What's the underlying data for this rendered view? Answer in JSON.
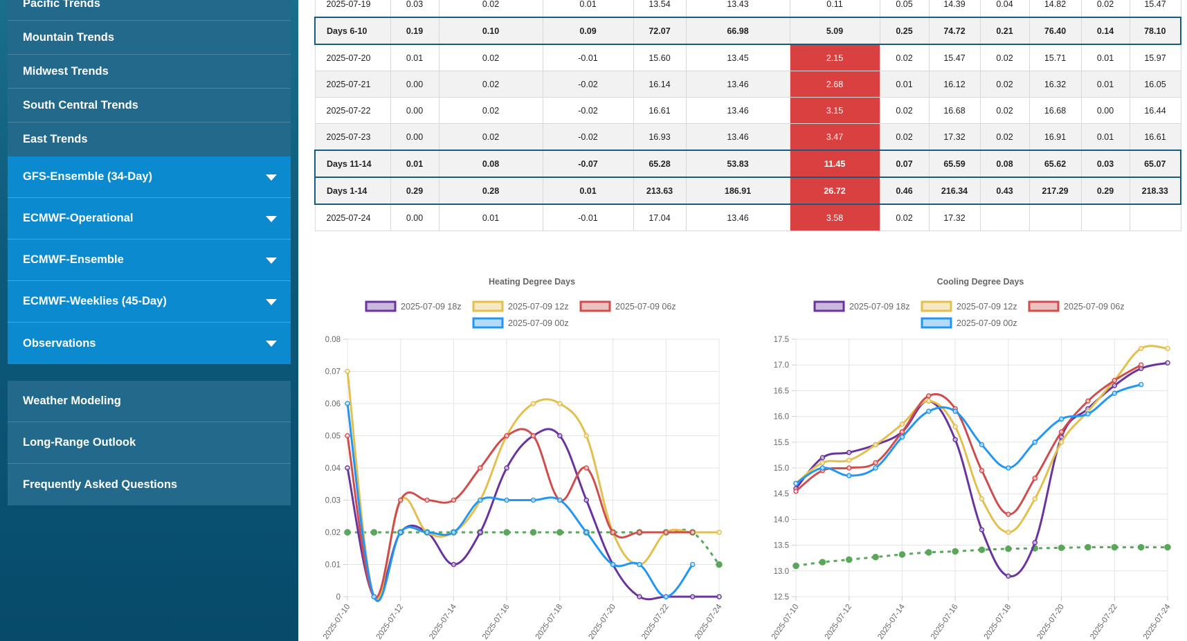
{
  "sidebar": {
    "trend_items": [
      "Pacific Trends",
      "Mountain Trends",
      "Midwest Trends",
      "South Central Trends",
      "East Trends"
    ],
    "dropdown_items": [
      "GFS-Ensemble (34-Day)",
      "ECMWF-Operational",
      "ECMWF-Ensemble",
      "ECMWF-Weeklies (45-Day)",
      "Observations"
    ],
    "bottom_items": [
      "Weather Modeling",
      "Long-Range Outlook",
      "Frequently Asked Questions"
    ]
  },
  "table": {
    "rows": [
      {
        "type": "day",
        "cells": [
          "2025-07-19",
          "0.03",
          "0.02",
          "0.01",
          "13.54",
          "13.43",
          "0.11",
          "0.05",
          "14.39",
          "0.04",
          "14.82",
          "0.02",
          "15.47"
        ]
      },
      {
        "type": "summary",
        "cells": [
          "Days 6-10",
          "0.19",
          "0.10",
          "0.09",
          "72.07",
          "66.98",
          "5.09",
          "0.25",
          "74.72",
          "0.21",
          "76.40",
          "0.14",
          "78.10"
        ]
      },
      {
        "type": "day",
        "hot": true,
        "cells": [
          "2025-07-20",
          "0.01",
          "0.02",
          "-0.01",
          "15.60",
          "13.45",
          "2.15",
          "0.02",
          "15.47",
          "0.02",
          "15.71",
          "0.01",
          "15.97"
        ]
      },
      {
        "type": "day",
        "hot": true,
        "alt": true,
        "cells": [
          "2025-07-21",
          "0.00",
          "0.02",
          "-0.02",
          "16.14",
          "13.46",
          "2.68",
          "0.01",
          "16.12",
          "0.02",
          "16.32",
          "0.01",
          "16.05"
        ]
      },
      {
        "type": "day",
        "hot": true,
        "cells": [
          "2025-07-22",
          "0.00",
          "0.02",
          "-0.02",
          "16.61",
          "13.46",
          "3.15",
          "0.02",
          "16.68",
          "0.02",
          "16.68",
          "0.00",
          "16.44"
        ]
      },
      {
        "type": "day",
        "hot": true,
        "alt": true,
        "cells": [
          "2025-07-23",
          "0.00",
          "0.02",
          "-0.02",
          "16.93",
          "13.46",
          "3.47",
          "0.02",
          "17.32",
          "0.02",
          "16.91",
          "0.01",
          "16.61"
        ]
      },
      {
        "type": "summary",
        "hot": true,
        "cells": [
          "Days 11-14",
          "0.01",
          "0.08",
          "-0.07",
          "65.28",
          "53.83",
          "11.45",
          "0.07",
          "65.59",
          "0.08",
          "65.62",
          "0.03",
          "65.07"
        ]
      },
      {
        "type": "summary",
        "hot": true,
        "cells": [
          "Days 1-14",
          "0.29",
          "0.28",
          "0.01",
          "213.63",
          "186.91",
          "26.72",
          "0.46",
          "216.34",
          "0.43",
          "217.29",
          "0.29",
          "218.33"
        ]
      },
      {
        "type": "day",
        "hot": true,
        "cells": [
          "2025-07-24",
          "0.00",
          "0.01",
          "-0.01",
          "17.04",
          "13.46",
          "3.58",
          "0.02",
          "17.32",
          "",
          "",
          "",
          ""
        ]
      }
    ]
  },
  "colors": {
    "s18z": "#6a339e",
    "s12z": "#e3bf4e",
    "s06z": "#cf4d4d",
    "s00z": "#2196f3",
    "normal": "#5aa65a",
    "hot": "#d94040"
  },
  "chart_data": [
    {
      "type": "line",
      "title": "Heating Degree Days",
      "x": [
        "2025-07-10",
        "2025-07-11",
        "2025-07-12",
        "2025-07-13",
        "2025-07-14",
        "2025-07-15",
        "2025-07-16",
        "2025-07-17",
        "2025-07-18",
        "2025-07-19",
        "2025-07-20",
        "2025-07-21",
        "2025-07-22",
        "2025-07-23",
        "2025-07-24"
      ],
      "xticks": [
        "2025-07-10",
        "2025-07-12",
        "2025-07-14",
        "2025-07-16",
        "2025-07-18",
        "2025-07-20",
        "2025-07-22",
        "2025-07-24"
      ],
      "ylim": [
        0,
        0.08
      ],
      "yticks": [
        "0",
        "0.01",
        "0.02",
        "0.03",
        "0.04",
        "0.05",
        "0.06",
        "0.07",
        "0.08"
      ],
      "legend": "top",
      "grid": true,
      "series": [
        {
          "name": "2025-07-09 18z",
          "color": "#6a339e",
          "values": [
            0.04,
            0.0,
            0.02,
            0.02,
            0.01,
            0.02,
            0.04,
            0.05,
            0.05,
            0.03,
            0.01,
            0.0,
            0.0,
            0.0,
            0.0
          ]
        },
        {
          "name": "2025-07-09 12z",
          "color": "#e3bf4e",
          "values": [
            0.07,
            0.0,
            0.03,
            0.02,
            0.02,
            0.03,
            0.05,
            0.06,
            0.06,
            0.05,
            0.02,
            0.01,
            0.02,
            0.02,
            0.02
          ]
        },
        {
          "name": "2025-07-09 06z",
          "color": "#cf4d4d",
          "values": [
            0.05,
            0.0,
            0.03,
            0.03,
            0.03,
            0.04,
            0.05,
            0.05,
            0.03,
            0.04,
            0.02,
            0.02,
            0.02,
            0.02,
            null
          ]
        },
        {
          "name": "2025-07-09 00z",
          "color": "#2196f3",
          "values": [
            0.06,
            0.0,
            0.02,
            0.02,
            0.02,
            0.03,
            0.03,
            0.03,
            0.03,
            0.02,
            0.01,
            0.01,
            0.0,
            0.01,
            null
          ]
        },
        {
          "name": "",
          "color": "#5aa65a",
          "dashed": true,
          "values": [
            0.02,
            0.02,
            0.02,
            0.02,
            0.02,
            0.02,
            0.02,
            0.02,
            0.02,
            0.02,
            0.02,
            0.02,
            0.02,
            0.02,
            0.01
          ]
        }
      ]
    },
    {
      "type": "line",
      "title": "Cooling Degree Days",
      "x": [
        "2025-07-10",
        "2025-07-11",
        "2025-07-12",
        "2025-07-13",
        "2025-07-14",
        "2025-07-15",
        "2025-07-16",
        "2025-07-17",
        "2025-07-18",
        "2025-07-19",
        "2025-07-20",
        "2025-07-21",
        "2025-07-22",
        "2025-07-23",
        "2025-07-24"
      ],
      "xticks": [
        "2025-07-10",
        "2025-07-12",
        "2025-07-14",
        "2025-07-16",
        "2025-07-18",
        "2025-07-20",
        "2025-07-22",
        "2025-07-24"
      ],
      "ylim": [
        12.5,
        17.5
      ],
      "yticks": [
        "12.5",
        "13.0",
        "13.5",
        "14.0",
        "14.5",
        "15.0",
        "15.5",
        "16.0",
        "16.5",
        "17.0",
        "17.5"
      ],
      "legend": "top",
      "grid": true,
      "series": [
        {
          "name": "2025-07-09 18z",
          "color": "#6a339e",
          "values": [
            14.6,
            15.2,
            15.3,
            15.45,
            15.7,
            16.3,
            15.55,
            13.8,
            12.9,
            13.55,
            15.6,
            16.15,
            16.6,
            16.93,
            17.04
          ]
        },
        {
          "name": "2025-07-09 12z",
          "color": "#e3bf4e",
          "values": [
            14.7,
            15.1,
            15.15,
            15.45,
            15.85,
            16.3,
            15.8,
            14.4,
            13.75,
            14.4,
            15.5,
            16.1,
            16.7,
            17.32,
            17.32
          ]
        },
        {
          "name": "2025-07-09 06z",
          "color": "#cf4d4d",
          "values": [
            14.55,
            14.95,
            15.0,
            15.1,
            15.7,
            16.4,
            16.15,
            14.95,
            14.1,
            14.8,
            15.7,
            16.3,
            16.7,
            17.0,
            null
          ]
        },
        {
          "name": "2025-07-09 00z",
          "color": "#2196f3",
          "values": [
            14.7,
            15.0,
            14.85,
            15.0,
            15.6,
            16.1,
            16.1,
            15.45,
            15.0,
            15.5,
            15.95,
            16.05,
            16.45,
            16.62,
            null
          ]
        },
        {
          "name": "",
          "color": "#5aa65a",
          "dashed": true,
          "values": [
            13.1,
            13.17,
            13.22,
            13.27,
            13.32,
            13.36,
            13.38,
            13.41,
            13.43,
            13.44,
            13.45,
            13.46,
            13.46,
            13.46,
            13.46
          ]
        }
      ]
    }
  ]
}
